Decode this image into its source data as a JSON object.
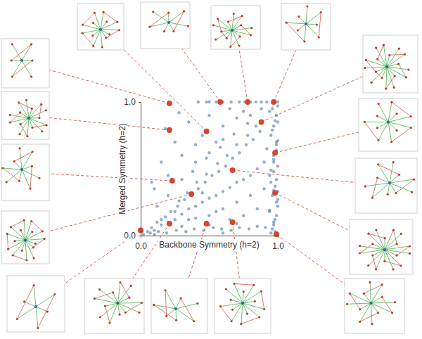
{
  "chart_data": {
    "type": "scatter",
    "x_label": "Backbone Symmetry (h=2)",
    "y_label": "Merged Symmetry (h=2)",
    "xlim": [
      0,
      1
    ],
    "ylim": [
      0,
      1
    ],
    "xticks": [
      {
        "value": 0,
        "label": "0.0"
      },
      {
        "value": 1,
        "label": "1.0"
      }
    ],
    "yticks": [
      {
        "value": 0,
        "label": "0.0"
      },
      {
        "value": 1,
        "label": "1.0"
      }
    ],
    "series": [
      {
        "color": "#3b6b9c",
        "marker": "circle",
        "x": [
          0.95,
          0.97,
          0.99,
          1.0,
          0.96,
          0.98,
          0.94,
          1.0,
          0.97,
          0.99,
          0.95,
          0.97,
          0.99,
          1.0,
          0.96,
          0.98,
          0.94,
          1.0,
          0.97,
          0.99,
          0.95,
          0.97,
          0.99,
          1.0,
          0.96,
          0.98,
          0.94,
          1.0,
          0.97,
          0.99,
          0.95,
          0.97,
          0.99,
          1.0,
          0.96,
          0.98,
          0.94,
          1.0,
          0.97,
          0.99,
          0.05,
          0.08,
          0.1,
          0.12,
          0.15,
          0.18,
          0.2,
          0.22,
          0.25,
          0.27,
          0.3,
          0.32,
          0.35,
          0.37,
          0.4,
          0.42,
          0.45,
          0.47,
          0.5,
          0.52,
          0.55,
          0.57,
          0.6,
          0.62,
          0.65,
          0.67,
          0.7,
          0.72,
          0.75,
          0.77,
          0.8,
          0.82,
          0.85,
          0.87,
          0.9,
          0.88,
          0.84,
          0.78,
          0.7,
          0.63,
          0.56,
          0.48,
          0.41,
          0.34,
          0.28,
          0.6,
          0.7,
          0.8,
          0.5,
          0.4,
          0.9,
          0.85,
          0.75,
          0.65,
          0.55,
          0.45,
          0.35,
          0.25,
          0.15,
          0.92,
          0.02,
          0.07,
          0.13,
          0.19,
          0.26,
          0.33,
          0.39,
          0.46,
          0.53,
          0.59,
          0.66,
          0.72,
          0.79,
          0.85,
          0.91,
          0.3,
          0.5,
          0.7,
          0.1,
          0.6,
          0.1,
          0.15,
          0.2,
          0.25,
          0.3,
          0.35,
          0.4,
          0.45,
          0.5,
          0.55,
          0.6,
          0.65,
          0.7,
          0.75,
          0.8,
          0.3,
          0.4,
          0.5,
          0.6,
          0.2,
          0.12,
          0.08,
          0.18,
          0.28,
          0.38,
          0.48,
          0.58,
          0.68,
          0.78,
          0.88,
          0.42,
          0.48,
          0.55,
          0.6,
          0.66,
          0.72,
          0.76,
          0.8,
          0.84,
          0.88,
          0.92,
          0.5
        ],
        "values": [
          0.02,
          0.08,
          0.15,
          0.22,
          0.3,
          0.37,
          0.45,
          0.52,
          0.6,
          0.68,
          0.75,
          0.82,
          0.9,
          0.97,
          0.05,
          0.12,
          0.19,
          0.27,
          0.34,
          0.42,
          0.49,
          0.57,
          0.64,
          0.71,
          0.79,
          0.86,
          0.93,
          1.0,
          0.1,
          0.25,
          0.4,
          0.55,
          0.7,
          0.85,
          0.95,
          0.03,
          0.18,
          0.33,
          0.48,
          0.63,
          0.03,
          0.06,
          0.04,
          0.1,
          0.08,
          0.14,
          0.1,
          0.18,
          0.12,
          0.22,
          0.16,
          0.27,
          0.2,
          0.3,
          0.22,
          0.35,
          0.25,
          0.4,
          0.28,
          0.45,
          0.3,
          0.48,
          0.33,
          0.52,
          0.36,
          0.58,
          0.4,
          0.62,
          0.42,
          0.68,
          0.45,
          0.72,
          0.5,
          0.78,
          0.55,
          0.85,
          0.82,
          0.75,
          0.68,
          0.6,
          0.54,
          0.46,
          0.4,
          0.32,
          0.26,
          0.2,
          0.25,
          0.3,
          0.15,
          0.13,
          0.35,
          0.2,
          0.15,
          0.12,
          0.18,
          0.32,
          0.12,
          0.18,
          0.12,
          0.65,
          0.01,
          0.02,
          0.03,
          0.02,
          0.04,
          0.03,
          0.05,
          0.04,
          0.06,
          0.05,
          0.04,
          0.06,
          0.05,
          0.07,
          0.06,
          0.07,
          0.08,
          0.09,
          0.01,
          0.02,
          0.35,
          0.55,
          0.45,
          0.7,
          0.6,
          0.85,
          0.55,
          0.75,
          0.9,
          0.7,
          0.82,
          0.95,
          0.88,
          0.93,
          0.9,
          0.42,
          0.68,
          0.62,
          0.72,
          0.3,
          0.22,
          0.4,
          0.8,
          0.92,
          0.48,
          0.58,
          0.66,
          0.76,
          0.84,
          0.95,
          1.0,
          1.0,
          1.0,
          1.0,
          1.0,
          1.0,
          1.0,
          1.0,
          1.0,
          1.0,
          1.0,
          1.0
        ]
      },
      {
        "color": "#d8452f",
        "marker": "circle",
        "x": [
          0.21,
          0.48,
          0.58,
          0.78,
          0.97,
          0.21,
          0.23,
          0.37,
          0.67,
          0.88,
          0.98,
          0.98,
          0.99,
          0.0,
          0.21,
          0.48,
          0.67
        ],
        "values": [
          0.99,
          0.78,
          1.0,
          1.0,
          1.0,
          0.79,
          0.41,
          0.31,
          0.49,
          0.85,
          0.62,
          0.32,
          0.01,
          0.04,
          0.09,
          0.09,
          0.1
        ]
      }
    ]
  }
}
